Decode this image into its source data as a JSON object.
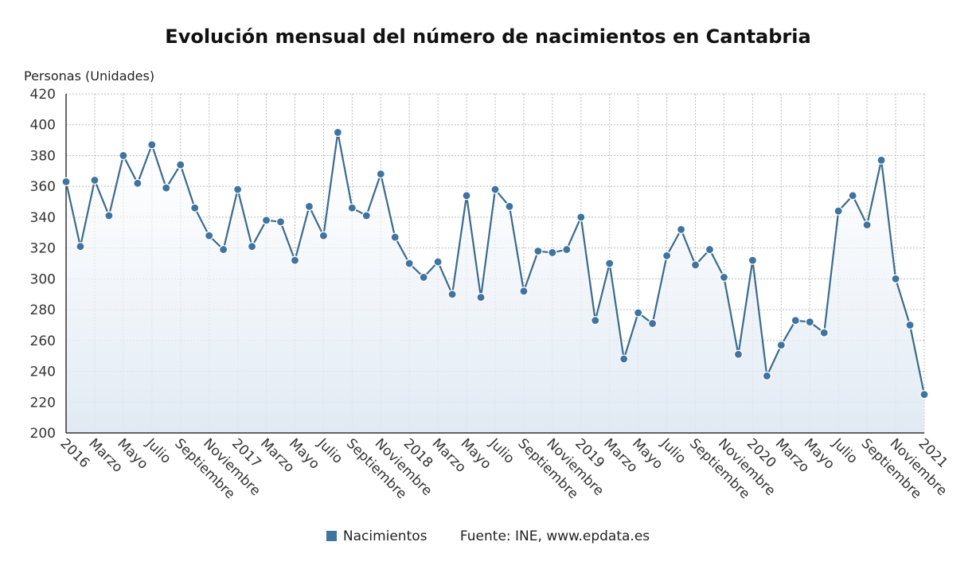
{
  "chart_data": {
    "type": "line",
    "title": "Evolución mensual del número de nacimientos en Cantabria",
    "ylabel": "Personas (Unidades)",
    "ylim": [
      200,
      420
    ],
    "yticks": [
      200,
      220,
      240,
      260,
      280,
      300,
      320,
      340,
      360,
      380,
      400,
      420
    ],
    "grid": true,
    "legend_position": "bottom",
    "xtick_labels": [
      "2016",
      "Marzo",
      "Mayo",
      "Julio",
      "Septiembre",
      "Noviembre",
      "2017",
      "Marzo",
      "Mayo",
      "Julio",
      "Septiembre",
      "Noviembre",
      "2018",
      "Marzo",
      "Mayo",
      "Julio",
      "Septiembre",
      "Noviembre",
      "2019",
      "Marzo",
      "Mayo",
      "Julio",
      "Septiembre",
      "Noviembre",
      "2020",
      "Marzo",
      "Mayo",
      "Julio",
      "Septiembre",
      "Noviembre",
      "2021"
    ],
    "x_start": "2016-01",
    "x_end": "2021-01",
    "series": [
      {
        "name": "Nacimientos",
        "color": "#3f73a0",
        "values": [
          363,
          321,
          364,
          341,
          380,
          362,
          387,
          359,
          374,
          346,
          328,
          319,
          358,
          321,
          338,
          337,
          312,
          347,
          328,
          395,
          346,
          341,
          368,
          327,
          310,
          301,
          311,
          290,
          354,
          288,
          358,
          347,
          292,
          318,
          317,
          319,
          340,
          273,
          310,
          248,
          278,
          271,
          315,
          332,
          309,
          319,
          301,
          251,
          312,
          237,
          257,
          273,
          272,
          265,
          344,
          354,
          335,
          377,
          300,
          270,
          225
        ]
      }
    ]
  },
  "source": "Fuente: INE, www.epdata.es"
}
